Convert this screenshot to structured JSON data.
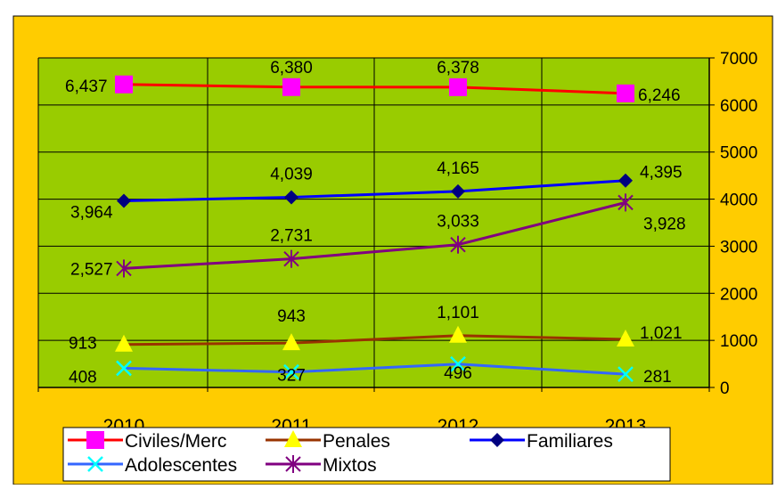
{
  "chart_data": {
    "type": "line",
    "categories": [
      "2010",
      "2011",
      "2012",
      "2013"
    ],
    "ylim": [
      0,
      7000
    ],
    "yticks": [
      0,
      1000,
      2000,
      3000,
      4000,
      5000,
      6000,
      7000
    ],
    "y_axis_side": "right",
    "grid": true,
    "legend_position": "bottom",
    "colors": {
      "figure_background": "#FFCC00",
      "plot_background": "#99CC00",
      "gridlines": "#000000"
    },
    "series": [
      {
        "name": "Civiles/Merc",
        "values": [
          6437,
          6380,
          6378,
          6246
        ],
        "labels": [
          "6,437",
          "6,380",
          "6,378",
          "6,246"
        ],
        "line_color": "#FF0000",
        "marker": "square",
        "marker_color": "#FF00FF"
      },
      {
        "name": "Penales",
        "values": [
          913,
          943,
          1101,
          1021
        ],
        "labels": [
          "913",
          "943",
          "1,101",
          "1,021"
        ],
        "line_color": "#993300",
        "marker": "triangle",
        "marker_color": "#FFFF00"
      },
      {
        "name": "Familiares",
        "values": [
          3964,
          4039,
          4165,
          4395
        ],
        "labels": [
          "3,964",
          "4,039",
          "4,165",
          "4,395"
        ],
        "line_color": "#0000FF",
        "marker": "diamond",
        "marker_color": "#000080"
      },
      {
        "name": "Adolescentes",
        "values": [
          408,
          327,
          496,
          281
        ],
        "labels": [
          "408",
          "327",
          "496",
          "281"
        ],
        "line_color": "#3366FF",
        "marker": "x",
        "marker_color": "#00FFFF"
      },
      {
        "name": "Mixtos",
        "values": [
          2527,
          2731,
          3033,
          3928
        ],
        "labels": [
          "2,527",
          "2,731",
          "3,033",
          "3,928"
        ],
        "line_color": "#800080",
        "marker": "asterisk",
        "marker_color": "#800080"
      }
    ]
  }
}
